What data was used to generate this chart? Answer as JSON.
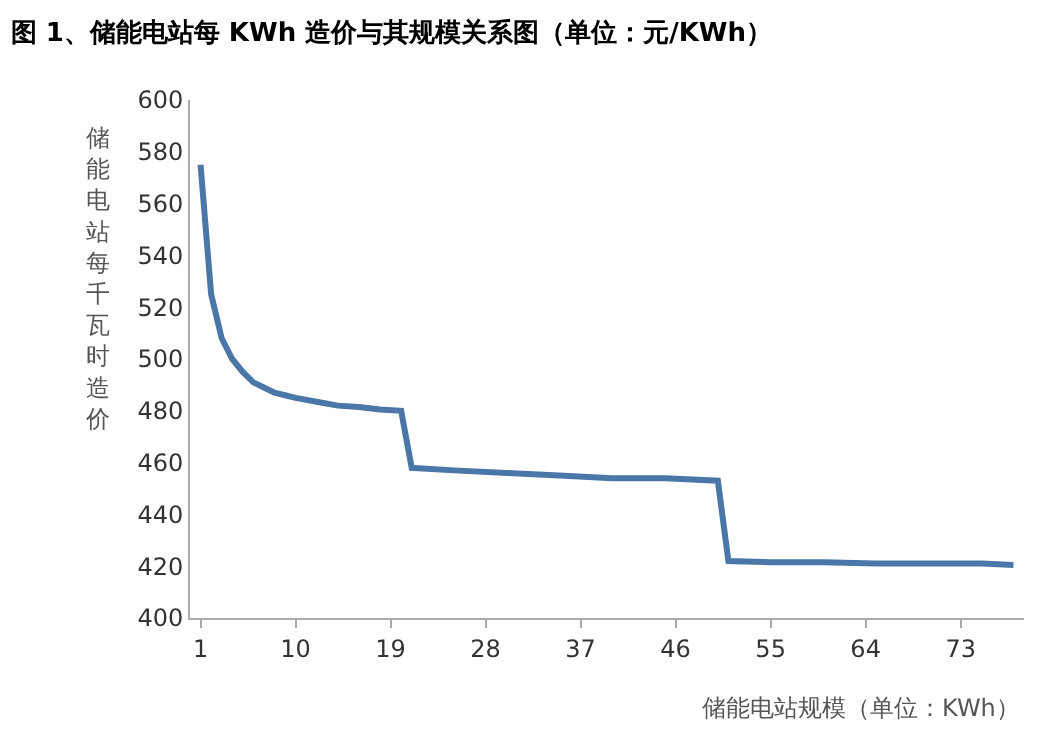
{
  "chart_data": {
    "type": "line",
    "title": "图 1、储能电站每 KWh 造价与其规模关系图（单位：元/KWh）",
    "xlabel": "储能电站规模（单位：KWh）",
    "ylabel": "储能电站每千瓦时造价",
    "x": [
      1,
      2,
      3,
      4,
      5,
      6,
      7,
      8,
      9,
      10,
      12,
      14,
      16,
      18,
      20,
      21,
      25,
      30,
      35,
      40,
      45,
      50,
      51,
      55,
      60,
      65,
      70,
      75,
      78
    ],
    "series": [
      {
        "color": "#4a76a8",
        "values": [
          575,
          525,
          508,
          500,
          495,
          491,
          489,
          487,
          486,
          485,
          483.5,
          482,
          481.5,
          480.5,
          480,
          458,
          457,
          456,
          455,
          454,
          454,
          453,
          422,
          421.5,
          421.5,
          421,
          421,
          421,
          420.5
        ]
      }
    ],
    "xlim": [
      0,
      79
    ],
    "xticks": [
      1,
      10,
      19,
      28,
      37,
      46,
      55,
      64,
      73
    ],
    "ylim": [
      400,
      600
    ],
    "yticks": [
      400,
      420,
      440,
      460,
      480,
      500,
      520,
      540,
      560,
      580,
      600
    ],
    "marker": "none",
    "line_style": "solid"
  }
}
